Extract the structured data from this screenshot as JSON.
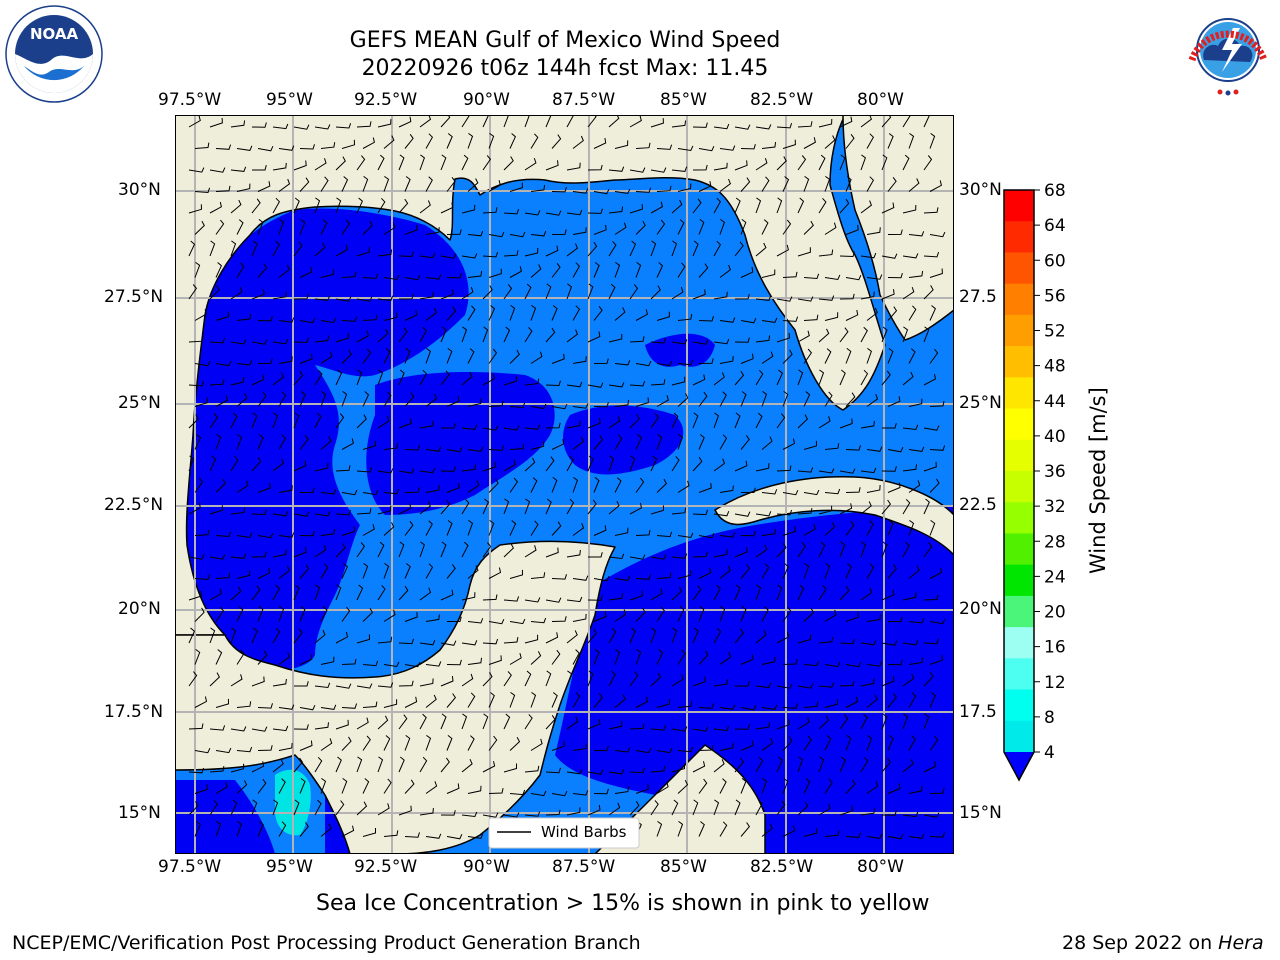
{
  "title": {
    "line1": "GEFS MEAN Gulf of Mexico Wind Speed",
    "line2": "20220926 t06z 144h fcst   Max: 11.45"
  },
  "logos": {
    "left": "noaa-logo",
    "left_text": "NOAA",
    "left_ring": "NATIONAL OCEANIC AND ATMOSPHERIC ADMINISTRATION · U.S. DEPARTMENT OF COMMERCE",
    "right": "nws-logo",
    "right_ring": "NATIONAL WEATHER SERVICE"
  },
  "axes": {
    "lon_labels": [
      "97.5°W",
      "95°W",
      "92.5°W",
      "90°W",
      "87.5°W",
      "85°W",
      "82.5°W",
      "80°W"
    ],
    "lat_labels_left": [
      "30°N",
      "27.5°N",
      "25°N",
      "22.5°N",
      "20°N",
      "17.5°N",
      "15°N"
    ],
    "lat_labels_right": [
      "30°N",
      "27.5",
      "25°N",
      "22.5",
      "20°N",
      "17.5",
      "15°N"
    ]
  },
  "legend": {
    "label": "Wind Barbs"
  },
  "colorbar": {
    "label": "Wind Speed [m/s]",
    "ticks": [
      "68",
      "64",
      "60",
      "56",
      "52",
      "48",
      "44",
      "40",
      "36",
      "32",
      "28",
      "24",
      "20",
      "16",
      "12",
      "8",
      "4"
    ],
    "colors": [
      "#ff0000",
      "#ff2a00",
      "#ff5500",
      "#ff7f00",
      "#ff9e00",
      "#ffbf00",
      "#ffe600",
      "#ffff00",
      "#e6ff00",
      "#c8ff00",
      "#96ff00",
      "#50f000",
      "#00e600",
      "#4af57a",
      "#9cfff2",
      "#4dfff0",
      "#00ffee",
      "#00eaea",
      "#0080ff",
      "#0000ff"
    ]
  },
  "map": {
    "colors": {
      "land": "#efeedb",
      "low": "#0000f5",
      "mid": "#0a80ff",
      "high": "#00e4e4",
      "grid": "#b4b4b4"
    }
  },
  "caption": "Sea Ice Concentration > 15% is shown in pink to yellow",
  "footer": {
    "left": "NCEP/EMC/Verification Post Processing Product Generation Branch",
    "date": "28 Sep 2022 on ",
    "host": "Hera"
  }
}
